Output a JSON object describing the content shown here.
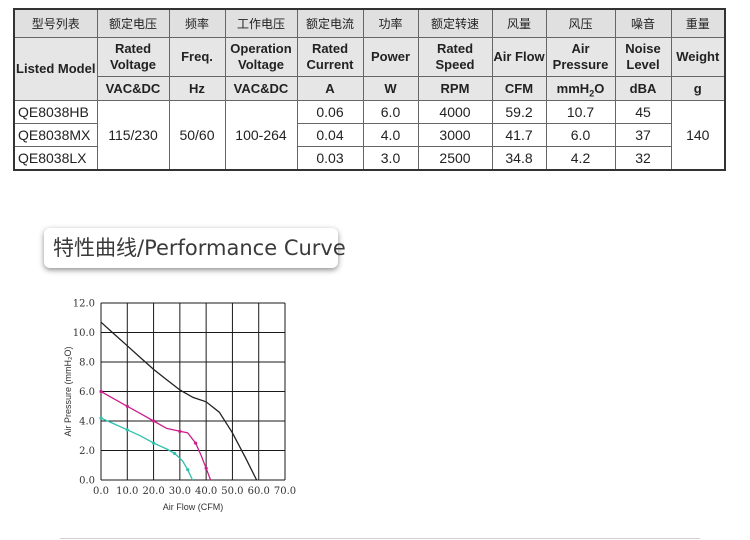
{
  "table": {
    "headers_cn": [
      "型号列表",
      "额定电压",
      "频率",
      "工作电压",
      "额定电流",
      "功率",
      "额定转速",
      "风量",
      "风压",
      "噪音",
      "重量"
    ],
    "headers_en": [
      "Listed Model",
      "Rated Voltage",
      "Freq.",
      "Operation Voltage",
      "Rated Current",
      "Power",
      "Rated Speed",
      "Air Flow",
      "Air Pressure",
      "Noise Level",
      "Weight"
    ],
    "units": [
      "VAC&DC",
      "Hz",
      "VAC&DC",
      "A",
      "W",
      "RPM",
      "CFM",
      "mmH2O",
      "dBA",
      "g"
    ],
    "rated_voltage": "115/230",
    "freq": "50/60",
    "operation_voltage": "100-264",
    "weight": "140",
    "rows": [
      {
        "model": "QE8038HB",
        "current": "0.06",
        "power": "6.0",
        "speed": "4000",
        "flow": "59.2",
        "pressure": "10.7",
        "noise": "45"
      },
      {
        "model": "QE8038MX",
        "current": "0.04",
        "power": "4.0",
        "speed": "3000",
        "flow": "41.7",
        "pressure": "6.0",
        "noise": "37"
      },
      {
        "model": "QE8038LX",
        "current": "0.03",
        "power": "3.0",
        "speed": "2500",
        "flow": "34.8",
        "pressure": "4.2",
        "noise": "32"
      }
    ]
  },
  "section_heading": "特性曲线/Performance Curve",
  "chart_data": {
    "type": "line",
    "xlabel": "Air Flow (CFM)",
    "ylabel": "Air Pressure (mmH₂O)",
    "xlim": [
      0,
      70
    ],
    "ylim": [
      0,
      12
    ],
    "x_ticks": [
      "0.0",
      "10.0",
      "20.0",
      "30.0",
      "40.0",
      "50.0",
      "60.0",
      "70.0"
    ],
    "y_ticks": [
      "0.0",
      "2.0",
      "4.0",
      "6.0",
      "8.0",
      "10.0",
      "12.0"
    ],
    "grid": true,
    "series": [
      {
        "color": "#222222",
        "markers": false,
        "points": [
          [
            0,
            10.7
          ],
          [
            5,
            9.9
          ],
          [
            10,
            9.1
          ],
          [
            15,
            8.3
          ],
          [
            20,
            7.5
          ],
          [
            25,
            6.8
          ],
          [
            30,
            6.1
          ],
          [
            35,
            5.6
          ],
          [
            40,
            5.3
          ],
          [
            45,
            4.6
          ],
          [
            50,
            3.2
          ],
          [
            55,
            1.5
          ],
          [
            59.2,
            0
          ]
        ]
      },
      {
        "color": "#cc1f8a",
        "markers": true,
        "points": [
          [
            0,
            6.0
          ],
          [
            5,
            5.5
          ],
          [
            10,
            5.0
          ],
          [
            15,
            4.5
          ],
          [
            20,
            4.0
          ],
          [
            25,
            3.5
          ],
          [
            30,
            3.3
          ],
          [
            33,
            3.2
          ],
          [
            36,
            2.5
          ],
          [
            38,
            1.7
          ],
          [
            40,
            0.8
          ],
          [
            41.7,
            0
          ]
        ]
      },
      {
        "color": "#2fbfae",
        "markers": true,
        "points": [
          [
            0,
            4.2
          ],
          [
            5,
            3.8
          ],
          [
            10,
            3.4
          ],
          [
            15,
            3.0
          ],
          [
            20,
            2.5
          ],
          [
            25,
            2.1
          ],
          [
            28,
            1.8
          ],
          [
            31,
            1.3
          ],
          [
            33,
            0.7
          ],
          [
            34.8,
            0
          ]
        ]
      }
    ]
  }
}
